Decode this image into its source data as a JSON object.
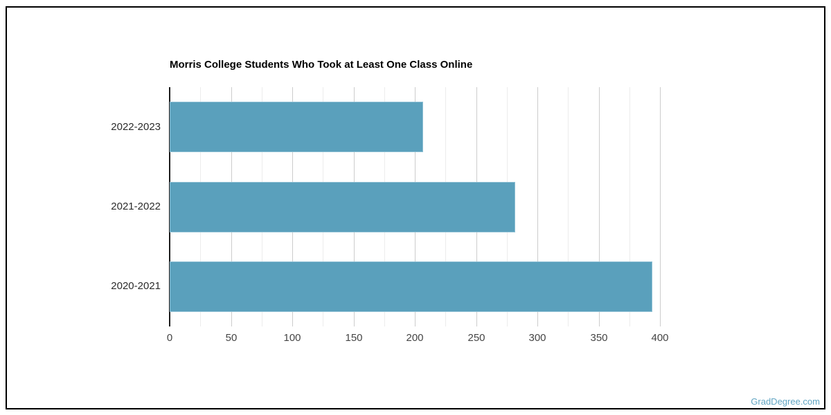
{
  "page": {
    "watermark": "GradDegree.com",
    "colors": {
      "bar": "#5aa0bc",
      "bar_edge": "#8fc0d4",
      "watermark": "#61a5c3",
      "grid_minor": "#ececec",
      "grid_major": "#cccccc",
      "baseline": "#1c1c1c",
      "frame_border": "#000000",
      "title": "#000000",
      "tick_label": "#454545",
      "category_label": "#2b2b2b"
    }
  },
  "chart_data": {
    "type": "bar",
    "orientation": "horizontal",
    "title": "Morris College Students Who Took at Least One Class Online",
    "categories": [
      "2022-2023",
      "2021-2022",
      "2020-2021"
    ],
    "values": [
      207,
      282,
      394
    ],
    "xlabel": "",
    "ylabel": "",
    "xlim": [
      0,
      400
    ],
    "x_ticks": [
      0,
      50,
      100,
      150,
      200,
      250,
      300,
      350,
      400
    ],
    "minor_tick_interval": 25,
    "grid": true,
    "legend": "none"
  }
}
